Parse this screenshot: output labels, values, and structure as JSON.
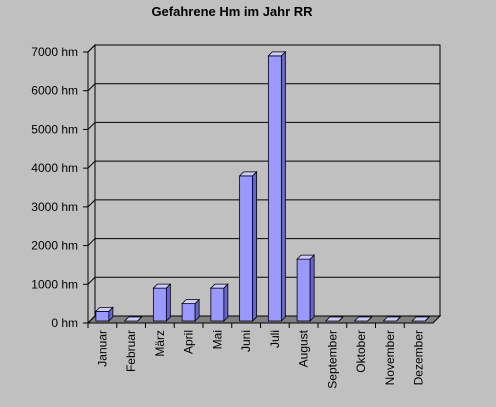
{
  "chart_data": {
    "type": "bar",
    "title": "Gefahrene Hm im Jahr RR",
    "categories": [
      "Januar",
      "Februar",
      "März",
      "April",
      "Mai",
      "Juni",
      "Juli",
      "August",
      "September",
      "Oktober",
      "November",
      "Dezember"
    ],
    "values": [
      300,
      50,
      900,
      500,
      900,
      3800,
      6900,
      1650,
      0,
      0,
      0,
      0
    ],
    "color": "#9999ff",
    "ylim": [
      0,
      7000
    ],
    "yticks": [
      {
        "value": 0,
        "label": "0 hm"
      },
      {
        "value": 1000,
        "label": "1000 hm"
      },
      {
        "value": 2000,
        "label": "2000 hm"
      },
      {
        "value": 3000,
        "label": "3000 hm"
      },
      {
        "value": 4000,
        "label": "4000 hm"
      },
      {
        "value": 5000,
        "label": "5000 hm"
      },
      {
        "value": 6000,
        "label": "6000 hm"
      },
      {
        "value": 7000,
        "label": "7000 hm"
      }
    ],
    "grid": true
  }
}
